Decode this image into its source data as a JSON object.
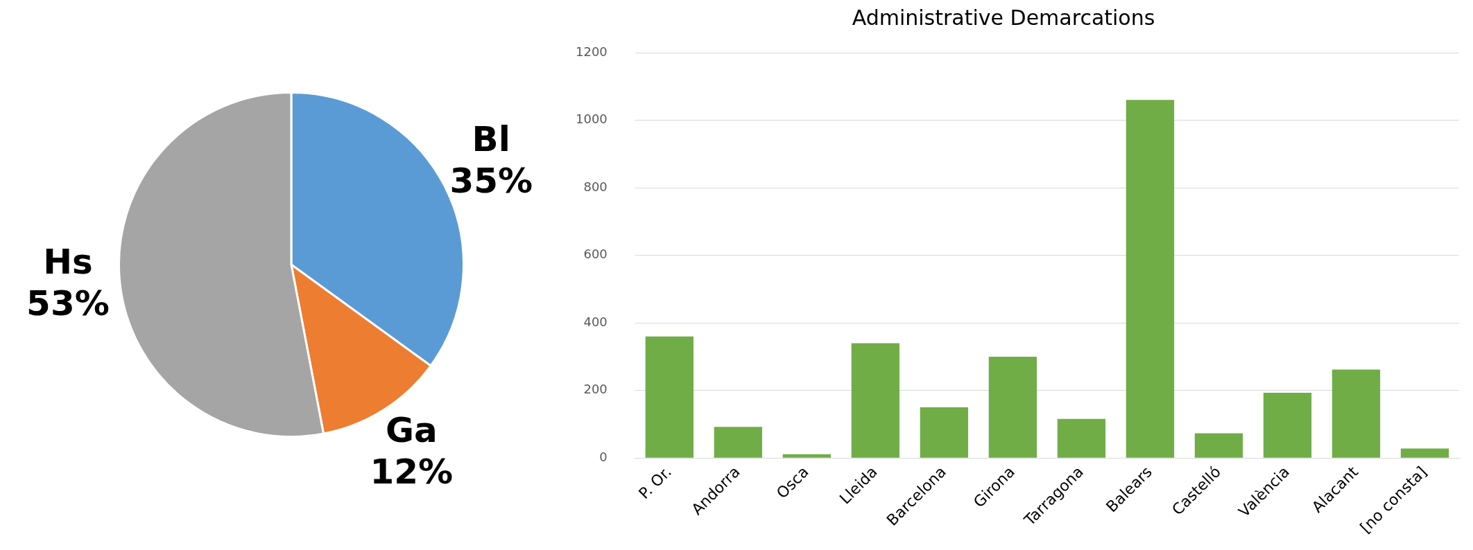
{
  "chart_data": [
    {
      "type": "pie",
      "categories": [
        "Bl",
        "Ga",
        "Hs"
      ],
      "values": [
        35,
        12,
        53
      ],
      "colors": [
        "#5b9bd5",
        "#ed7d31",
        "#a5a5a5"
      ],
      "value_labels": [
        "35%",
        "12%",
        "53%"
      ]
    },
    {
      "type": "bar",
      "title": "Administrative Demarcations",
      "categories": [
        "P. Or.",
        "Andorra",
        "Osca",
        "Lleida",
        "Barcelona",
        "Girona",
        "Tarragona",
        "Balears",
        "Castelló",
        "València",
        "Alacant",
        "[no consta]"
      ],
      "values": [
        360,
        92,
        11,
        340,
        150,
        300,
        116,
        1060,
        73,
        193,
        262,
        28
      ],
      "color": "#70ad47",
      "ylim": [
        0,
        1200
      ],
      "yticks": [
        0,
        200,
        400,
        600,
        800,
        1000,
        1200
      ],
      "grid": "y"
    }
  ]
}
